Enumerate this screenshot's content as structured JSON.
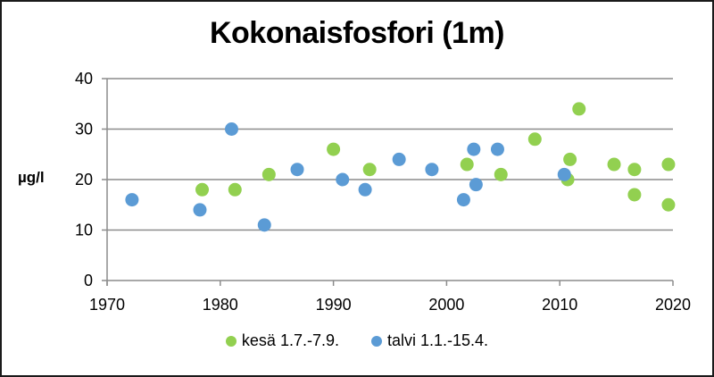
{
  "chart_data": {
    "type": "scatter",
    "title": "Kokonaisfosfori (1m)",
    "xlabel": "",
    "ylabel": "µg/l",
    "xlim": [
      1970,
      2020
    ],
    "ylim": [
      0,
      40
    ],
    "x_ticks": [
      1970,
      1980,
      1990,
      2000,
      2010,
      2020
    ],
    "y_ticks": [
      0,
      10,
      20,
      30,
      40
    ],
    "grid": "horizontal",
    "legend_position": "bottom",
    "series": [
      {
        "name": "kesä 1.7.-7.9.",
        "color": "#92D050",
        "points": [
          [
            1978.4,
            18
          ],
          [
            1981.3,
            18
          ],
          [
            1984.3,
            21
          ],
          [
            1990.0,
            26
          ],
          [
            1993.2,
            22
          ],
          [
            2001.8,
            23
          ],
          [
            2004.8,
            21
          ],
          [
            2007.8,
            28
          ],
          [
            2010.7,
            20
          ],
          [
            2010.9,
            24
          ],
          [
            2011.7,
            34
          ],
          [
            2014.8,
            23
          ],
          [
            2016.6,
            22
          ],
          [
            2016.6,
            17
          ],
          [
            2019.6,
            23
          ],
          [
            2019.6,
            15
          ]
        ]
      },
      {
        "name": "talvi 1.1.-15.4.",
        "color": "#5B9BD5",
        "points": [
          [
            1972.2,
            16
          ],
          [
            1978.2,
            14
          ],
          [
            1981.0,
            30
          ],
          [
            1983.9,
            11
          ],
          [
            1986.8,
            22
          ],
          [
            1990.8,
            20
          ],
          [
            1992.8,
            18
          ],
          [
            1995.8,
            24
          ],
          [
            1998.7,
            22
          ],
          [
            2001.5,
            16
          ],
          [
            2002.4,
            26
          ],
          [
            2002.6,
            19
          ],
          [
            2004.5,
            26
          ],
          [
            2010.4,
            21
          ]
        ]
      }
    ]
  },
  "legend": {
    "items": [
      {
        "label": "kesä 1.7.-7.9.",
        "color": "#92D050"
      },
      {
        "label": "talvi 1.1.-15.4.",
        "color": "#5B9BD5"
      }
    ]
  }
}
